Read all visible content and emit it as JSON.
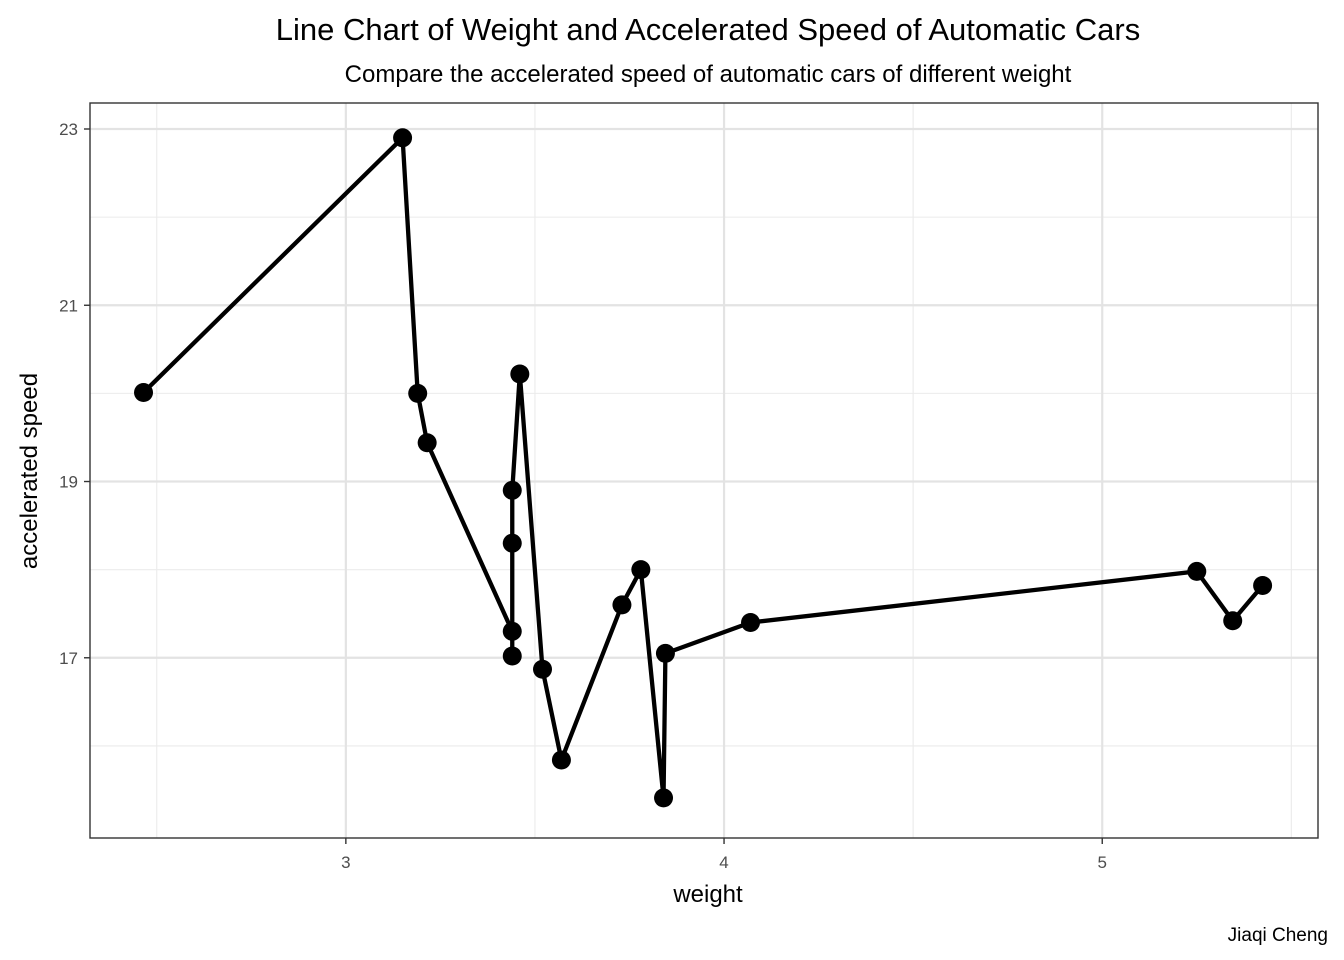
{
  "chart_data": {
    "type": "line",
    "title": "Line Chart of Weight and Accelerated Speed of Automatic Cars",
    "subtitle": "Compare the accelerated speed of automatic cars of different weight",
    "caption": "Jiaqi Cheng",
    "xlabel": "weight",
    "ylabel": "accelerated speed",
    "xlim": [
      2.3235,
      5.5705
    ],
    "ylim": [
      14.955,
      23.295
    ],
    "x_ticks": [
      3,
      4,
      5
    ],
    "y_ticks": [
      17,
      19,
      21,
      23
    ],
    "x_tick_labels": [
      "3",
      "4",
      "5"
    ],
    "y_tick_labels": [
      "17",
      "19",
      "21",
      "23"
    ],
    "grid": true,
    "series": [
      {
        "color": "#000000",
        "points": [
          {
            "x": 2.465,
            "y": 20.01
          },
          {
            "x": 3.15,
            "y": 22.9
          },
          {
            "x": 3.19,
            "y": 20.0
          },
          {
            "x": 3.215,
            "y": 19.44
          },
          {
            "x": 3.44,
            "y": 17.3
          },
          {
            "x": 3.44,
            "y": 17.02
          },
          {
            "x": 3.44,
            "y": 18.3
          },
          {
            "x": 3.44,
            "y": 18.9
          },
          {
            "x": 3.46,
            "y": 20.22
          },
          {
            "x": 3.52,
            "y": 16.87
          },
          {
            "x": 3.57,
            "y": 15.84
          },
          {
            "x": 3.73,
            "y": 17.6
          },
          {
            "x": 3.78,
            "y": 18.0
          },
          {
            "x": 3.84,
            "y": 15.41
          },
          {
            "x": 3.845,
            "y": 17.05
          },
          {
            "x": 4.07,
            "y": 17.4
          },
          {
            "x": 5.25,
            "y": 17.98
          },
          {
            "x": 5.345,
            "y": 17.42
          },
          {
            "x": 5.424,
            "y": 17.82
          }
        ]
      }
    ]
  }
}
